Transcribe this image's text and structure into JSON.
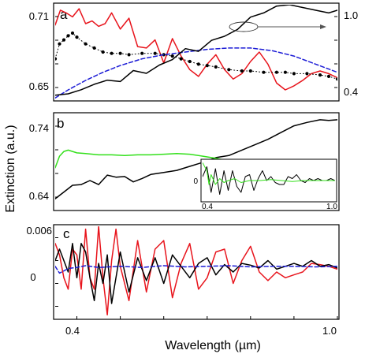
{
  "figure": {
    "ylabel": "Extinction (a.u.)",
    "xlabel": "Wavelength (µm)",
    "x_tick_labels": [
      "0.4",
      "1.0"
    ]
  },
  "chart_data": [
    {
      "panel": "a",
      "type": "line",
      "xlim": [
        0.35,
        1.0
      ],
      "ylim": [
        0.645,
        0.715
      ],
      "y_tick_labels": [
        "0.71",
        "0.65"
      ],
      "y2lim": [
        0.37,
        1.06
      ],
      "y2_tick_labels": [
        "1.0",
        "0.4"
      ],
      "annotation": "oval marks the black curve with an arrow pointing to the right-hand axis",
      "series": [
        {
          "color": "#e8141c",
          "style": "solid",
          "axis": "left",
          "x": [
            0.35,
            0.362,
            0.375,
            0.39,
            0.405,
            0.42,
            0.435,
            0.45,
            0.465,
            0.48,
            0.5,
            0.52,
            0.54,
            0.56,
            0.58,
            0.6,
            0.62,
            0.64,
            0.66,
            0.68,
            0.7,
            0.72,
            0.74,
            0.76,
            0.78,
            0.8,
            0.82,
            0.84,
            0.86,
            0.88,
            0.9,
            0.92,
            0.94,
            0.96,
            0.98,
            1.0
          ],
          "y": [
            0.7,
            0.711,
            0.709,
            0.706,
            0.712,
            0.701,
            0.703,
            0.699,
            0.701,
            0.709,
            0.697,
            0.705,
            0.684,
            0.683,
            0.689,
            0.672,
            0.69,
            0.677,
            0.667,
            0.662,
            0.671,
            0.678,
            0.667,
            0.66,
            0.664,
            0.673,
            0.68,
            0.671,
            0.657,
            0.652,
            0.655,
            0.659,
            0.664,
            0.666,
            0.664,
            0.661
          ]
        },
        {
          "color": "#000000",
          "style": "dotted-markers",
          "axis": "left",
          "x": [
            0.35,
            0.36,
            0.37,
            0.38,
            0.39,
            0.4,
            0.42,
            0.44,
            0.46,
            0.48,
            0.5,
            0.52,
            0.55,
            0.58,
            0.6,
            0.62,
            0.64,
            0.66,
            0.68,
            0.7,
            0.72,
            0.75,
            0.78,
            0.8,
            0.83,
            0.86,
            0.88,
            0.9,
            0.93,
            0.96,
            0.98,
            1.0
          ],
          "y": [
            0.675,
            0.686,
            0.689,
            0.692,
            0.694,
            0.691,
            0.686,
            0.683,
            0.68,
            0.679,
            0.679,
            0.678,
            0.679,
            0.679,
            0.678,
            0.677,
            0.675,
            0.673,
            0.671,
            0.67,
            0.669,
            0.667,
            0.666,
            0.666,
            0.665,
            0.665,
            0.665,
            0.664,
            0.664,
            0.663,
            0.662,
            0.66
          ]
        },
        {
          "color": "#1c1cd6",
          "style": "dashed",
          "axis": "left",
          "x": [
            0.35,
            0.38,
            0.42,
            0.46,
            0.5,
            0.55,
            0.6,
            0.65,
            0.7,
            0.75,
            0.8,
            0.85,
            0.9,
            0.95,
            1.0
          ],
          "y": [
            0.646,
            0.652,
            0.659,
            0.665,
            0.67,
            0.675,
            0.678,
            0.68,
            0.682,
            0.683,
            0.683,
            0.681,
            0.677,
            0.671,
            0.665
          ]
        },
        {
          "color": "#000000",
          "style": "solid",
          "axis": "right",
          "x": [
            0.35,
            0.38,
            0.41,
            0.44,
            0.47,
            0.5,
            0.53,
            0.56,
            0.59,
            0.62,
            0.65,
            0.68,
            0.71,
            0.74,
            0.77,
            0.8,
            0.83,
            0.86,
            0.89,
            0.92,
            0.95,
            0.98,
            1.0
          ],
          "y": [
            0.4,
            0.41,
            0.44,
            0.48,
            0.51,
            0.5,
            0.58,
            0.56,
            0.62,
            0.66,
            0.74,
            0.72,
            0.8,
            0.83,
            0.88,
            0.97,
            1.0,
            1.05,
            1.06,
            1.04,
            1.02,
            1.0,
            1.02
          ]
        }
      ]
    },
    {
      "panel": "b",
      "type": "line",
      "xlim": [
        0.35,
        1.0
      ],
      "ylim": [
        0.625,
        0.765
      ],
      "y_tick_labels": [
        "0.74",
        "0.64"
      ],
      "series": [
        {
          "color": "#000000",
          "style": "solid",
          "x": [
            0.35,
            0.37,
            0.39,
            0.41,
            0.43,
            0.45,
            0.47,
            0.49,
            0.51,
            0.53,
            0.55,
            0.57,
            0.6,
            0.63,
            0.66,
            0.69,
            0.72,
            0.75,
            0.78,
            0.81,
            0.84,
            0.87,
            0.9,
            0.93,
            0.96,
            0.98,
            1.0
          ],
          "y": [
            0.64,
            0.65,
            0.66,
            0.661,
            0.667,
            0.661,
            0.675,
            0.672,
            0.673,
            0.665,
            0.67,
            0.676,
            0.679,
            0.682,
            0.688,
            0.694,
            0.701,
            0.704,
            0.712,
            0.72,
            0.728,
            0.738,
            0.748,
            0.753,
            0.757,
            0.756,
            0.757
          ]
        },
        {
          "color": "#33e01b",
          "style": "solid",
          "x": [
            0.35,
            0.36,
            0.37,
            0.38,
            0.4,
            0.42,
            0.45,
            0.48,
            0.51,
            0.54,
            0.57,
            0.6,
            0.63,
            0.66,
            0.69,
            0.72,
            0.75,
            0.78,
            0.81,
            0.84,
            0.86
          ],
          "y": [
            0.686,
            0.703,
            0.71,
            0.712,
            0.708,
            0.707,
            0.705,
            0.705,
            0.704,
            0.705,
            0.705,
            0.706,
            0.707,
            0.706,
            0.703,
            0.7,
            0.696,
            0.693,
            0.692,
            0.693,
            0.693
          ]
        }
      ],
      "inset": {
        "xlim": [
          0.38,
          1.0
        ],
        "ylim": [
          -1,
          1
        ],
        "x_tick_labels": [
          "0.4",
          "1.0"
        ],
        "y_tick_labels": [
          "0"
        ],
        "series": [
          {
            "color": "#000000",
            "style": "solid",
            "x": [
              0.38,
              0.4,
              0.42,
              0.44,
              0.46,
              0.48,
              0.5,
              0.52,
              0.54,
              0.56,
              0.58,
              0.6,
              0.62,
              0.64,
              0.66,
              0.68,
              0.7,
              0.72,
              0.74,
              0.76,
              0.78,
              0.8,
              0.82,
              0.84,
              0.86,
              0.88,
              0.9,
              0.92,
              0.94,
              0.96,
              0.98,
              1.0
            ],
            "y": [
              0.2,
              0.7,
              -0.6,
              0.6,
              -0.7,
              0.5,
              -0.5,
              0.5,
              -0.3,
              -0.6,
              0.2,
              0.3,
              -0.5,
              0.1,
              0.5,
              0.0,
              0.2,
              -0.1,
              -0.2,
              -0.2,
              0.2,
              0.1,
              0.3,
              0.0,
              -0.1,
              0.1,
              0.0,
              0.1,
              0.0,
              0.0,
              0.1,
              0.0
            ]
          },
          {
            "color": "#33e01b",
            "style": "solid",
            "x": [
              0.38,
              0.4,
              0.41,
              0.42,
              0.44,
              0.46,
              0.48,
              0.5,
              0.53,
              0.56,
              0.6,
              0.65,
              0.7,
              0.75,
              0.8,
              0.85,
              0.9,
              0.95,
              1.0
            ],
            "y": [
              0.9,
              0.5,
              -0.2,
              0.3,
              -0.2,
              0.1,
              -0.1,
              0.0,
              0.1,
              -0.1,
              0.0,
              0.0,
              0.05,
              0.0,
              -0.05,
              0.0,
              0.0,
              0.0,
              0.0
            ]
          }
        ]
      }
    },
    {
      "panel": "c",
      "type": "line",
      "xlim": [
        0.35,
        1.0
      ],
      "ylim": [
        -0.009,
        0.007
      ],
      "y_tick_labels": [
        "0.006",
        "0"
      ],
      "series": [
        {
          "color": "#e8141c",
          "style": "solid",
          "x": [
            0.35,
            0.36,
            0.37,
            0.38,
            0.39,
            0.4,
            0.41,
            0.42,
            0.43,
            0.44,
            0.45,
            0.46,
            0.47,
            0.48,
            0.49,
            0.5,
            0.52,
            0.54,
            0.56,
            0.58,
            0.6,
            0.62,
            0.64,
            0.66,
            0.68,
            0.7,
            0.72,
            0.74,
            0.76,
            0.78,
            0.8,
            0.82,
            0.84,
            0.86,
            0.88,
            0.9,
            0.92,
            0.94,
            0.96,
            0.98,
            1.0
          ],
          "y": [
            0.004,
            0.002,
            -0.002,
            -0.004,
            0.003,
            0.002,
            -0.004,
            0.0065,
            -0.002,
            -0.004,
            0.007,
            -0.002,
            -0.0085,
            0.001,
            0.0065,
            0.0,
            -0.006,
            0.0045,
            -0.0045,
            0.003,
            0.0045,
            -0.0055,
            0.0005,
            0.004,
            -0.004,
            -0.002,
            0.0025,
            0.003,
            -0.003,
            0.001,
            0.0035,
            -0.001,
            -0.0025,
            -0.001,
            -0.002,
            -0.0015,
            -0.001,
            0.0005,
            0.0003,
            0.0,
            -0.0005
          ]
        },
        {
          "color": "#000000",
          "style": "solid",
          "x": [
            0.35,
            0.36,
            0.37,
            0.38,
            0.39,
            0.4,
            0.41,
            0.42,
            0.43,
            0.44,
            0.45,
            0.46,
            0.47,
            0.48,
            0.5,
            0.52,
            0.54,
            0.56,
            0.58,
            0.6,
            0.62,
            0.64,
            0.66,
            0.68,
            0.7,
            0.72,
            0.74,
            0.76,
            0.78,
            0.8,
            0.82,
            0.84,
            0.86,
            0.88,
            0.9,
            0.92,
            0.94,
            0.96,
            0.98,
            1.0
          ],
          "y": [
            0.001,
            0.003,
            0.001,
            -0.001,
            0.004,
            -0.002,
            0.004,
            0.0025,
            -0.002,
            -0.006,
            0.0005,
            -0.003,
            0.002,
            -0.0065,
            0.0025,
            -0.0045,
            0.0015,
            -0.0025,
            0.0015,
            -0.003,
            0.002,
            0.0,
            -0.002,
            0.0005,
            0.0015,
            -0.0015,
            0.0003,
            -0.001,
            0.0005,
            0.0002,
            -0.0003,
            0.001,
            -0.0005,
            0.0,
            0.0005,
            0.0,
            0.001,
            0.0,
            0.0003,
            -0.0003
          ]
        },
        {
          "color": "#1c1cd6",
          "style": "dashed",
          "x": [
            0.35,
            0.36,
            0.37,
            0.38,
            0.4,
            0.42,
            0.45,
            0.5,
            0.55,
            0.6,
            0.65,
            0.7,
            0.75,
            0.8,
            0.85,
            0.9,
            0.95,
            1.0
          ],
          "y": [
            0.0,
            -0.0012,
            -0.0008,
            -0.0004,
            -0.0002,
            0.0001,
            -0.0002,
            0.0,
            -0.0002,
            0.0001,
            -0.0001,
            0.0,
            0.0001,
            -0.0001,
            0.0,
            0.0,
            -0.0001,
            0.0
          ]
        }
      ]
    }
  ]
}
